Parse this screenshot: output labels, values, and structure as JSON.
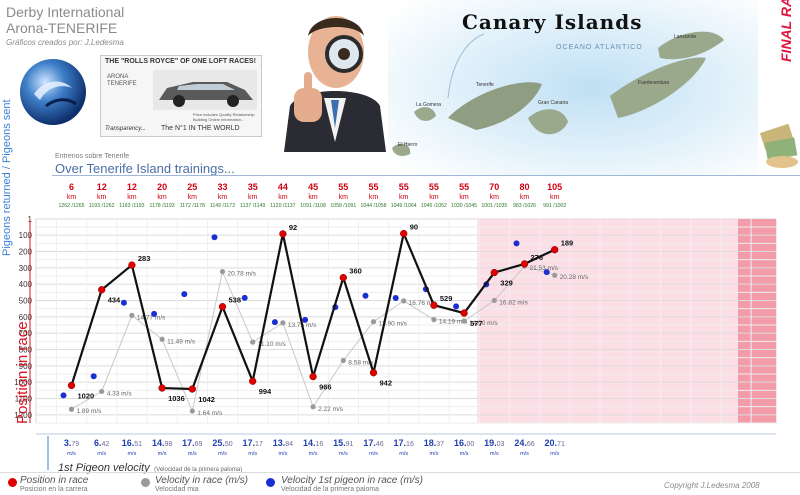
{
  "header": {
    "line1": "Derby International",
    "line2": "Arona-TENERIFE",
    "line3": "Gráficos creados por: J.Ledesma",
    "ad_title": "THE \"ROLLS ROYCE\" OF ONE LOFT RACES!",
    "ad_logo": "ARONA TENERIFE",
    "ad_sub1": "Price includes Quality Relationship",
    "ad_sub2": "Building Online Information...",
    "ad_transparency": "Transparency...",
    "ad_n1": "The N°1 IN THE WORLD",
    "map_title": "Canary Islands",
    "map_ocean": "OCEANO ATLANTICO",
    "map_islands": [
      "Lanzarote",
      "Tenerife",
      "La Gomera",
      "El Hierro",
      "Fuerteventura",
      "Gran Canaria"
    ],
    "final_race": "FINAL RACE",
    "trainings_sub": "Entrenos sobre Tenerife",
    "trainings_title": "Over Tenerife Island trainings..."
  },
  "axis_labels": {
    "left_blue_1": "Pigeons returned /",
    "left_blue_2": "Pigeons sent",
    "left_red": "Position in race",
    "km": "km"
  },
  "colors": {
    "race_line": "#111111",
    "position_dot": "#e00000",
    "velocity_dot": "#9a9a9a",
    "first_velocity_dot": "#1a2fd0",
    "final_zone": "#fbd0dc",
    "final_zone_dark": "#f08a98"
  },
  "chart_data": {
    "type": "line",
    "title": "",
    "ylabel": "Position in race",
    "ylim": [
      1,
      1250
    ],
    "yticks": [
      1,
      100,
      200,
      300,
      400,
      500,
      600,
      700,
      800,
      900,
      1000,
      1100,
      1200
    ],
    "y2lim": [
      0,
      28
    ],
    "distances_km": [
      "6",
      "12",
      "12",
      "20",
      "25",
      "33",
      "35",
      "44",
      "45",
      "55",
      "55",
      "55",
      "55",
      "55",
      "70",
      "80",
      "105"
    ],
    "pigeons": [
      "1262 /1265",
      "1193 /1262",
      "1193 /1193",
      "1178 /1193",
      "1172 /1178",
      "1149 /1172",
      "1137 /1149",
      "1120 /1137",
      "1091 /1108",
      "1058 /1091",
      "1044 /1058",
      "1049 /1064",
      "1045 /1052",
      "1030 /1045",
      "1001 /1035",
      "983 /1026",
      "991 /1002"
    ],
    "series": [
      {
        "name": "Position in race",
        "values": [
          1020,
          434,
          283,
          1036,
          1042,
          538,
          994,
          92,
          966,
          360,
          942,
          90,
          529,
          577,
          329,
          276,
          189
        ]
      },
      {
        "name": "Velocity in race (m/s)",
        "values": [
          1.89,
          4.33,
          14.77,
          11.49,
          1.64,
          20.78,
          11.1,
          13.75,
          2.22,
          8.58,
          13.9,
          16.76,
          14.19,
          14.0,
          16.82,
          21.53,
          20.28
        ]
      },
      {
        "name": "Velocity 1st pigeon in race (m/s)",
        "values": [
          3.79,
          6.42,
          16.51,
          14.98,
          17.69,
          25.5,
          17.17,
          13.84,
          14.16,
          15.91,
          17.46,
          17.16,
          18.37,
          16.0,
          19.03,
          24.66,
          20.71
        ]
      }
    ],
    "first_velocity_labels": [
      {
        "a": "3.",
        "b": "79"
      },
      {
        "a": "6.",
        "b": "42"
      },
      {
        "a": "16.",
        "b": "51"
      },
      {
        "a": "14.",
        "b": "98"
      },
      {
        "a": "17.",
        "b": "69"
      },
      {
        "a": "25.",
        "b": "50"
      },
      {
        "a": "17.",
        "b": "17"
      },
      {
        "a": "13.",
        "b": "84"
      },
      {
        "a": "14.",
        "b": "16"
      },
      {
        "a": "15.",
        "b": "91"
      },
      {
        "a": "17.",
        "b": "46"
      },
      {
        "a": "17.",
        "b": "16"
      },
      {
        "a": "18.",
        "b": "37"
      },
      {
        "a": "16.",
        "b": "00"
      },
      {
        "a": "19.",
        "b": "03"
      },
      {
        "a": "24.",
        "b": "66"
      },
      {
        "a": "20.",
        "b": "71"
      }
    ],
    "final_zone_from_index": 14,
    "grid": true
  },
  "first_velocity_title": "1st Pigeon velocity",
  "first_velocity_sub": "(Velocidad de la primera paloma)",
  "legend": {
    "position": "Position in race",
    "position_sub": "Posicion en la carrera",
    "velocity": "Velocity in race (m/s)",
    "velocity_sub": "Velocidad mia",
    "first": "Velocity 1st pigeon in race (m/s)",
    "first_sub": "Velocidad de la primera paloma"
  },
  "copyright": "Copyright J.Ledesma 2008"
}
